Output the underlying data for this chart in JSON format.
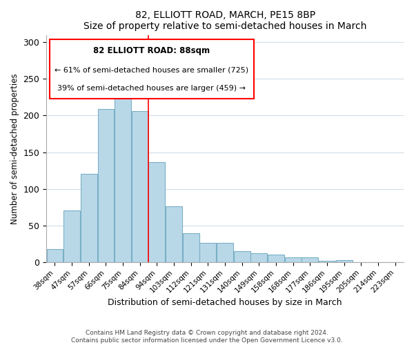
{
  "title1": "82, ELLIOTT ROAD, MARCH, PE15 8BP",
  "title2": "Size of property relative to semi-detached houses in March",
  "xlabel": "Distribution of semi-detached houses by size in March",
  "ylabel": "Number of semi-detached properties",
  "bar_labels": [
    "38sqm",
    "47sqm",
    "57sqm",
    "66sqm",
    "75sqm",
    "84sqm",
    "94sqm",
    "103sqm",
    "112sqm",
    "121sqm",
    "131sqm",
    "140sqm",
    "149sqm",
    "158sqm",
    "168sqm",
    "177sqm",
    "186sqm",
    "195sqm",
    "205sqm",
    "214sqm",
    "223sqm"
  ],
  "bar_values": [
    18,
    70,
    120,
    209,
    225,
    206,
    136,
    76,
    39,
    26,
    26,
    15,
    12,
    10,
    6,
    6,
    2,
    3,
    0,
    0,
    0
  ],
  "bar_color": "#b8d8e8",
  "bar_edge_color": "#7aafc5",
  "property_line_x": 6.0,
  "annotation_title": "82 ELLIOTT ROAD: 88sqm",
  "annotation_line1": "← 61% of semi-detached houses are smaller (725)",
  "annotation_line2": "39% of semi-detached houses are larger (459) →",
  "ylim": [
    0,
    310
  ],
  "yticks": [
    0,
    50,
    100,
    150,
    200,
    250,
    300
  ],
  "footer1": "Contains HM Land Registry data © Crown copyright and database right 2024.",
  "footer2": "Contains public sector information licensed under the Open Government Licence v3.0."
}
